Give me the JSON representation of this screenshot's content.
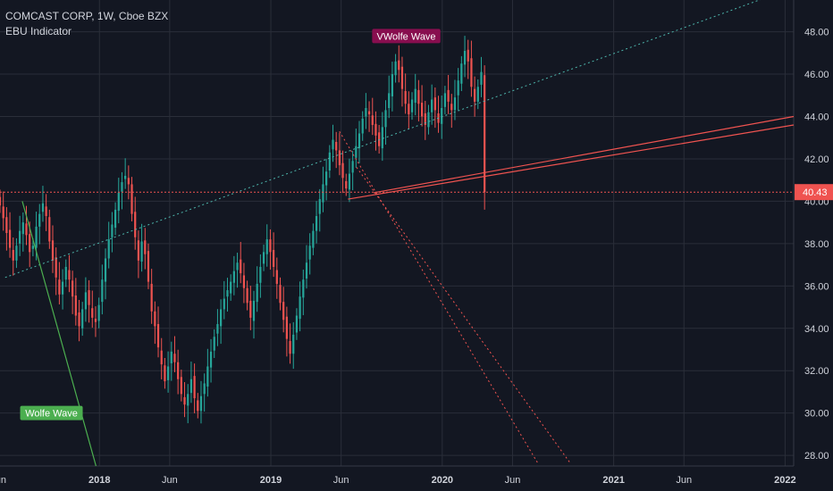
{
  "header": {
    "symbol_line": "COMCAST CORP, 1W, Cboe BZX",
    "indicator_line": "EBU Indicator"
  },
  "colors": {
    "background": "#131722",
    "grid": "#2a2e39",
    "up": "#26a69a",
    "down": "#ef5350",
    "axis_text": "#d1d4dc",
    "price_line": "#ef5350",
    "label_wolfe_top": "#880e4f",
    "label_wolfe_bottom": "#4caf50"
  },
  "chart_data": {
    "type": "candlestick",
    "title": "COMCAST CORP, 1W, Cboe BZX",
    "ylim": [
      27.5,
      49.5
    ],
    "y_ticks": [
      "28.00",
      "30.00",
      "32.00",
      "34.00",
      "36.00",
      "38.00",
      "40.00",
      "42.00",
      "44.00",
      "46.00",
      "48.00"
    ],
    "x_ticks": [
      {
        "label": "Jun",
        "t": 2017.41
      },
      {
        "label": "2018",
        "t": 2018.0
      },
      {
        "label": "Jun",
        "t": 2018.41
      },
      {
        "label": "2019",
        "t": 2019.0
      },
      {
        "label": "Jun",
        "t": 2019.41
      },
      {
        "label": "2020",
        "t": 2020.0
      },
      {
        "label": "Jun",
        "t": 2020.41
      },
      {
        "label": "2021",
        "t": 2021.0
      },
      {
        "label": "Jun",
        "t": 2021.41
      },
      {
        "label": "2022",
        "t": 2022.0
      }
    ],
    "xlim": [
      2017.42,
      2022.05
    ],
    "last_price": "40.43",
    "last_price_value": 40.43,
    "closes": [
      39.8,
      39.2,
      38.5,
      37.8,
      37.2,
      37.9,
      38.6,
      39.0,
      38.4,
      37.6,
      37.9,
      38.8,
      39.4,
      39.9,
      39.3,
      38.1,
      37.2,
      36.4,
      35.6,
      36.2,
      36.9,
      36.3,
      35.5,
      34.6,
      34.1,
      34.9,
      35.7,
      35.1,
      34.5,
      34.3,
      35.1,
      36.3,
      37.3,
      38.2,
      38.9,
      39.6,
      40.4,
      40.9,
      41.2,
      40.8,
      39.4,
      38.3,
      37.2,
      38.1,
      37.5,
      36.2,
      34.8,
      34.1,
      33.1,
      32.3,
      31.5,
      32.2,
      32.9,
      32.4,
      31.6,
      30.9,
      30.4,
      30.9,
      31.6,
      30.7,
      30.1,
      30.8,
      31.4,
      32.2,
      32.9,
      33.6,
      34.2,
      34.9,
      35.4,
      35.8,
      36.2,
      36.7,
      37.1,
      36.6,
      35.9,
      35.2,
      34.5,
      35.3,
      36.1,
      36.9,
      37.6,
      38.2,
      37.6,
      36.9,
      36.1,
      35.2,
      34.4,
      33.5,
      32.8,
      33.7,
      34.6,
      35.5,
      36.3,
      37.1,
      37.9,
      38.6,
      39.3,
      40.1,
      40.8,
      41.4,
      42.3,
      42.9,
      42.4,
      41.7,
      41.1,
      40.6,
      41.3,
      41.9,
      42.6,
      43.2,
      43.9,
      44.4,
      44.1,
      43.6,
      43.1,
      42.6,
      43.5,
      44.3,
      45.1,
      46.0,
      46.6,
      46.2,
      45.3,
      44.6,
      44.1,
      44.8,
      45.3,
      44.6,
      44.0,
      43.6,
      44.2,
      44.8,
      44.3,
      43.7,
      44.4,
      45.1,
      44.7,
      44.3,
      44.9,
      45.7,
      46.5,
      47.1,
      46.6,
      45.4,
      44.7,
      45.4,
      46.1,
      40.43
    ],
    "start_t": 2017.42,
    "step_t": 0.01923,
    "trendlines": [
      {
        "name": "upper-trend",
        "color": "#4db6ac",
        "style": "dotted",
        "t1": 2017.45,
        "p1": 36.4,
        "t2": 2021.95,
        "p2": 49.8
      },
      {
        "name": "wolfe-top-line-1",
        "color": "#ef5350",
        "style": "solid",
        "t1": 2019.45,
        "p1": 40.1,
        "t2": 2022.05,
        "p2": 43.6
      },
      {
        "name": "wolfe-top-line-2",
        "color": "#ef5350",
        "style": "solid",
        "t1": 2019.6,
        "p1": 40.4,
        "t2": 2022.05,
        "p2": 44.0
      },
      {
        "name": "wolfe-target-1",
        "color": "#ef5350",
        "style": "dotted",
        "t1": 2019.4,
        "p1": 43.3,
        "t2": 2020.56,
        "p2": 27.6
      },
      {
        "name": "wolfe-target-2",
        "color": "#ef5350",
        "style": "dotted",
        "t1": 2019.5,
        "p1": 41.6,
        "t2": 2020.75,
        "p2": 27.6
      },
      {
        "name": "wolfe-bottom-leg",
        "color": "#4caf50",
        "style": "solid",
        "t1": 2017.55,
        "p1": 40.0,
        "t2": 2017.98,
        "p2": 27.5
      }
    ],
    "annotations": [
      {
        "text": "VWolfe Wave",
        "t": 2019.79,
        "p": 47.8,
        "color": "#880e4f"
      },
      {
        "text": "Wolfe Wave",
        "t": 2017.72,
        "p": 30.0,
        "color": "#4caf50"
      }
    ]
  }
}
